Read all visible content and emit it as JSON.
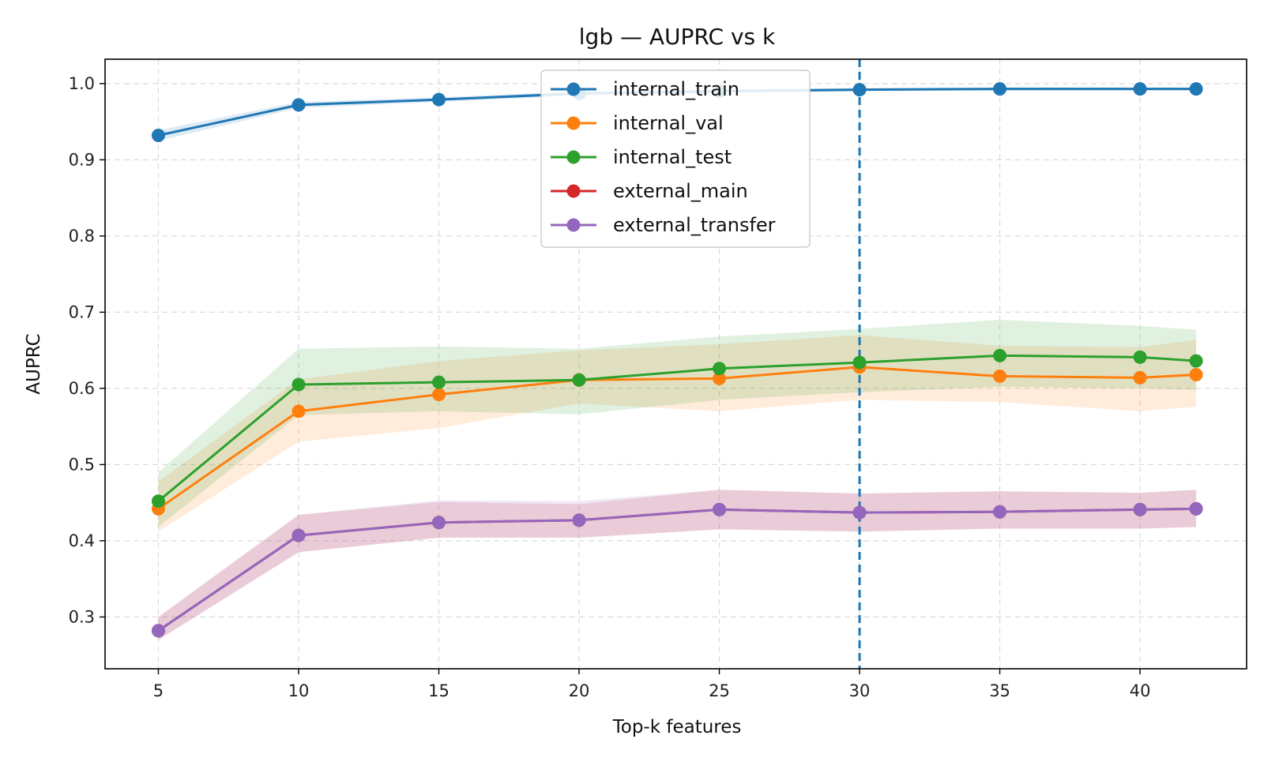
{
  "chart_data": {
    "type": "line",
    "title": "lgb — AUPRC vs k",
    "xlabel": "Top-k features",
    "ylabel": "AUPRC",
    "x": [
      5,
      10,
      15,
      20,
      25,
      30,
      35,
      40,
      42
    ],
    "xticks": [
      5,
      10,
      15,
      20,
      25,
      30,
      35,
      40
    ],
    "yticks": [
      0.3,
      0.4,
      0.5,
      0.6,
      0.7,
      0.8,
      0.9,
      1.0
    ],
    "xlim": [
      3.1,
      43.8
    ],
    "ylim": [
      0.232,
      1.032
    ],
    "grid": true,
    "legend_position": "top-center",
    "vline": {
      "x": 30,
      "style": "dashed",
      "color": "#1f77b4"
    },
    "series": [
      {
        "name": "internal_train",
        "color": "#1f77b4",
        "values": [
          0.932,
          0.972,
          0.979,
          0.987,
          0.99,
          0.992,
          0.993,
          0.993,
          0.993
        ],
        "lower": [
          0.925,
          0.968,
          0.976,
          0.984,
          0.987,
          0.99,
          0.991,
          0.991,
          0.991
        ],
        "upper": [
          0.939,
          0.976,
          0.982,
          0.99,
          0.993,
          0.994,
          0.995,
          0.995,
          0.995
        ]
      },
      {
        "name": "internal_val",
        "color": "#ff7f0e",
        "values": [
          0.442,
          0.57,
          0.592,
          0.611,
          0.613,
          0.628,
          0.616,
          0.614,
          0.618
        ],
        "lower": [
          0.412,
          0.53,
          0.548,
          0.58,
          0.57,
          0.585,
          0.582,
          0.57,
          0.576
        ],
        "upper": [
          0.478,
          0.612,
          0.636,
          0.65,
          0.658,
          0.67,
          0.656,
          0.654,
          0.664
        ]
      },
      {
        "name": "internal_test",
        "color": "#2ca02c",
        "values": [
          0.452,
          0.605,
          0.608,
          0.611,
          0.626,
          0.634,
          0.643,
          0.641,
          0.636
        ],
        "lower": [
          0.418,
          0.565,
          0.57,
          0.566,
          0.585,
          0.595,
          0.602,
          0.6,
          0.598
        ],
        "upper": [
          0.49,
          0.652,
          0.655,
          0.652,
          0.668,
          0.678,
          0.69,
          0.682,
          0.677
        ]
      },
      {
        "name": "external_main",
        "color": "#d62728",
        "values": [
          0.282,
          0.407,
          0.424,
          0.427,
          0.441,
          0.437,
          0.438,
          0.441,
          0.442
        ],
        "lower": [
          0.27,
          0.385,
          0.404,
          0.404,
          0.415,
          0.412,
          0.416,
          0.416,
          0.418
        ],
        "upper": [
          0.3,
          0.434,
          0.451,
          0.448,
          0.467,
          0.462,
          0.465,
          0.463,
          0.467
        ]
      },
      {
        "name": "external_transfer",
        "color": "#9467bd",
        "values": [
          0.282,
          0.407,
          0.424,
          0.427,
          0.441,
          0.437,
          0.438,
          0.441,
          0.442
        ],
        "lower": [
          0.27,
          0.385,
          0.404,
          0.404,
          0.415,
          0.412,
          0.416,
          0.416,
          0.418
        ],
        "upper": [
          0.3,
          0.434,
          0.453,
          0.452,
          0.467,
          0.462,
          0.465,
          0.463,
          0.467
        ]
      }
    ]
  }
}
